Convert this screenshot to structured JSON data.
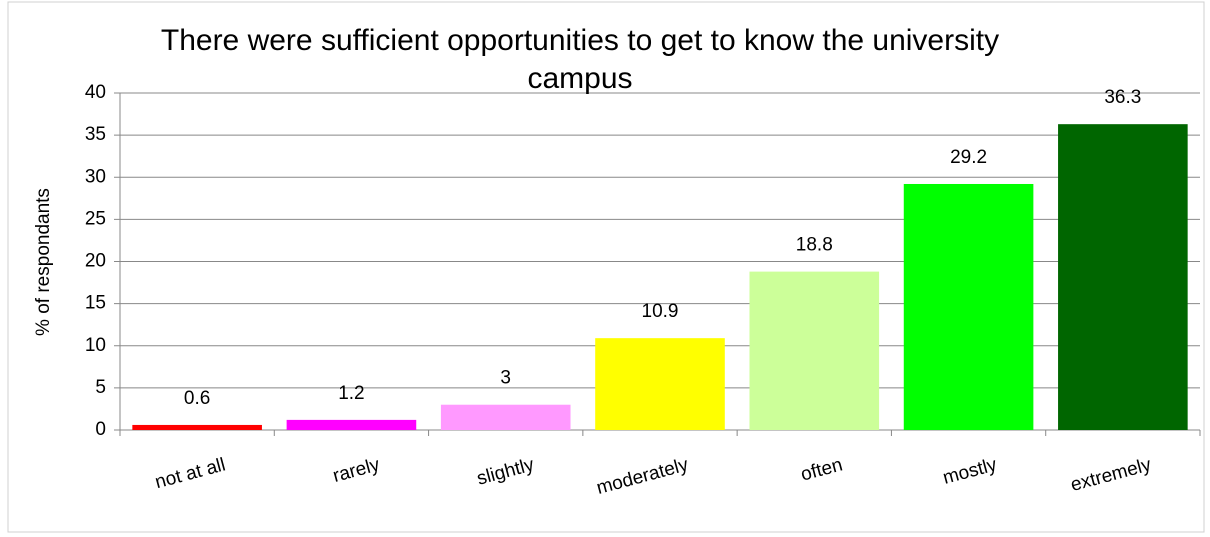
{
  "chart_data": {
    "type": "bar",
    "title": "There were sufficient opportunities to get to know the university campus",
    "ylabel": "% of respondants",
    "categories": [
      "not at all",
      "rarely",
      "slightly",
      "moderately",
      "often",
      "mostly",
      "extremely"
    ],
    "values": [
      0.6,
      1.2,
      3,
      10.9,
      18.8,
      29.2,
      36.3
    ],
    "colors": [
      "#ff0000",
      "#ff00ff",
      "#ff99ff",
      "#ffff00",
      "#ccff99",
      "#00ff00",
      "#006600"
    ],
    "ylim": [
      0,
      40
    ],
    "yticks": [
      0,
      5,
      10,
      15,
      20,
      25,
      30,
      35,
      40
    ],
    "grid": true
  }
}
